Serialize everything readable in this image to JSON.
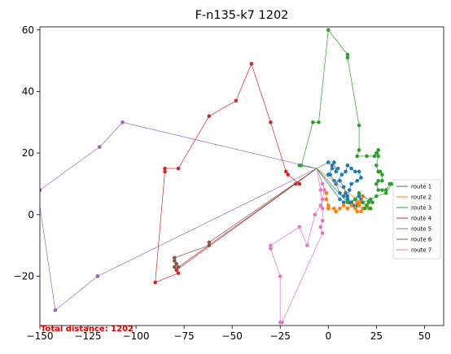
{
  "chart_data": {
    "type": "line",
    "title": "F-n135-k7 1202",
    "annotation": "Total distance: 1202",
    "xlim": [
      -150,
      60
    ],
    "ylim": [
      -36,
      61
    ],
    "xticks": [
      -150,
      -125,
      -100,
      -75,
      -50,
      -25,
      0,
      25,
      50
    ],
    "yticks": [
      -20,
      0,
      20,
      40,
      60
    ],
    "grid": false,
    "legend_placement": "center-right",
    "depot": [
      -6,
      15
    ],
    "series": [
      {
        "name": "route 1",
        "color": "#1f77b4",
        "points": [
          [
            -6,
            15
          ],
          [
            0,
            17
          ],
          [
            2,
            16
          ],
          [
            3,
            17
          ],
          [
            4,
            14
          ],
          [
            5,
            15
          ],
          [
            2,
            15
          ],
          [
            0,
            13
          ],
          [
            1,
            13
          ],
          [
            3,
            11
          ],
          [
            6,
            11
          ],
          [
            8,
            9
          ],
          [
            9,
            7
          ],
          [
            10,
            6
          ],
          [
            11,
            8
          ],
          [
            12,
            10
          ],
          [
            15,
            11
          ],
          [
            17,
            12
          ],
          [
            16,
            14
          ],
          [
            14,
            14
          ],
          [
            12,
            15
          ],
          [
            10,
            16
          ],
          [
            9,
            14
          ],
          [
            7,
            13
          ],
          [
            4,
            10
          ],
          [
            6,
            7
          ],
          [
            8,
            6
          ],
          [
            10,
            5
          ],
          [
            12,
            4
          ],
          [
            14,
            5
          ],
          [
            16,
            6
          ],
          [
            17,
            5
          ],
          [
            15,
            3
          ],
          [
            13,
            3
          ],
          [
            11,
            4
          ],
          [
            8,
            4
          ],
          [
            6,
            5
          ],
          [
            -6,
            15
          ]
        ]
      },
      {
        "name": "route 2",
        "color": "#ff7f0e",
        "points": [
          [
            -6,
            15
          ],
          [
            -1,
            7
          ],
          [
            -1,
            5
          ],
          [
            0,
            3
          ],
          [
            0,
            2
          ],
          [
            3,
            2
          ],
          [
            4,
            1
          ],
          [
            6,
            2
          ],
          [
            8,
            3
          ],
          [
            10,
            2
          ],
          [
            12,
            3
          ],
          [
            15,
            4
          ],
          [
            17,
            4
          ],
          [
            18,
            6
          ],
          [
            16,
            3
          ],
          [
            14,
            2
          ],
          [
            15,
            1
          ],
          [
            17,
            1
          ],
          [
            18,
            2
          ],
          [
            20,
            3
          ],
          [
            21,
            2
          ],
          [
            -6,
            15
          ]
        ]
      },
      {
        "name": "route 3",
        "color": "#2ca02c",
        "points": [
          [
            -6,
            15
          ],
          [
            -15,
            16
          ],
          [
            -14,
            16
          ],
          [
            -8,
            30
          ],
          [
            -5,
            30
          ],
          [
            0,
            60
          ],
          [
            10,
            52
          ],
          [
            10,
            51
          ],
          [
            16,
            29
          ],
          [
            16,
            21
          ],
          [
            15,
            19
          ],
          [
            20,
            19
          ],
          [
            24,
            19
          ],
          [
            25,
            20
          ],
          [
            26,
            21
          ],
          [
            26,
            19
          ],
          [
            25,
            16
          ],
          [
            26,
            14
          ],
          [
            27,
            14
          ],
          [
            28,
            13
          ],
          [
            28,
            11
          ],
          [
            26,
            11
          ],
          [
            25,
            10
          ],
          [
            26,
            8
          ],
          [
            28,
            8
          ],
          [
            30,
            8
          ],
          [
            32,
            10
          ],
          [
            33,
            10
          ],
          [
            30,
            7
          ],
          [
            25,
            6
          ],
          [
            22,
            5
          ],
          [
            18,
            4
          ],
          [
            20,
            3
          ],
          [
            22,
            2
          ],
          [
            19,
            2
          ],
          [
            21,
            4
          ],
          [
            23,
            4
          ],
          [
            16,
            7
          ],
          [
            14,
            5
          ],
          [
            10,
            4
          ],
          [
            -6,
            15
          ]
        ]
      },
      {
        "name": "route 4",
        "color": "#d62728",
        "points": [
          [
            -6,
            15
          ],
          [
            -17,
            10
          ],
          [
            -15,
            10
          ],
          [
            -21,
            13
          ],
          [
            -22,
            14
          ],
          [
            -30,
            30
          ],
          [
            -40,
            49
          ],
          [
            -48,
            37
          ],
          [
            -62,
            32
          ],
          [
            -78,
            15
          ],
          [
            -85,
            15
          ],
          [
            -85,
            14
          ],
          [
            -90,
            -22
          ],
          [
            -78,
            -19
          ],
          [
            -79,
            -18
          ],
          [
            -6,
            15
          ]
        ]
      },
      {
        "name": "route 5",
        "color": "#9467bd",
        "points": [
          [
            -6,
            15
          ],
          [
            -107,
            30
          ],
          [
            -119,
            22
          ],
          [
            -150,
            8
          ],
          [
            -151,
            7
          ],
          [
            -142,
            -31
          ],
          [
            -120,
            -20
          ],
          [
            -6,
            15
          ]
        ]
      },
      {
        "name": "route 6",
        "color": "#8c564b",
        "points": [
          [
            -6,
            15
          ],
          [
            -62,
            -9
          ],
          [
            -62,
            -10
          ],
          [
            -80,
            -14
          ],
          [
            -80,
            -15
          ],
          [
            -79,
            -16
          ],
          [
            -80,
            -17
          ],
          [
            -78,
            -17
          ],
          [
            -6,
            15
          ]
        ]
      },
      {
        "name": "route 7",
        "color": "#e377c2",
        "points": [
          [
            -6,
            15
          ],
          [
            -3,
            10
          ],
          [
            -2,
            8
          ],
          [
            -3,
            5
          ],
          [
            -4,
            3
          ],
          [
            -7,
            0
          ],
          [
            -11,
            -10
          ],
          [
            -15,
            -4
          ],
          [
            -30,
            -10
          ],
          [
            -30,
            -11
          ],
          [
            -25,
            -20
          ],
          [
            -25,
            -35
          ],
          [
            -24,
            -35
          ],
          [
            -3,
            -6
          ],
          [
            -4,
            -4
          ],
          [
            -3,
            -2
          ],
          [
            -3,
            2
          ],
          [
            -4,
            8
          ],
          [
            -6,
            15
          ]
        ]
      }
    ]
  }
}
